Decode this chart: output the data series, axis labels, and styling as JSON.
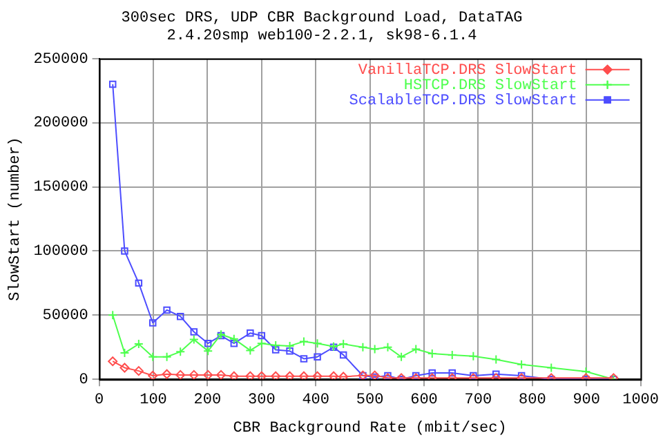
{
  "chart_data": {
    "type": "line",
    "title": "300sec DRS, UDP CBR Background Load, DataTAG",
    "subtitle": "2.4.20smp web100-2.2.1, sk98-6.1.4",
    "xlabel": "CBR Background Rate (mbit/sec)",
    "ylabel": "SlowStart (number)",
    "x": [
      25,
      47,
      73,
      99,
      125,
      150,
      175,
      201,
      225,
      249,
      279,
      300,
      326,
      352,
      378,
      403,
      433,
      451,
      487,
      509,
      533,
      558,
      585,
      615,
      652,
      691,
      733,
      780,
      835,
      899,
      950
    ],
    "series": [
      {
        "name": "VanillaTCP.DRS SlowStart",
        "color": "#ff4d4d",
        "marker": "diamond",
        "values": [
          14000,
          9000,
          6500,
          2800,
          4000,
          3400,
          3400,
          3400,
          3400,
          2400,
          2400,
          2400,
          2400,
          2400,
          2400,
          2400,
          2400,
          2000,
          3000,
          3000,
          1000,
          1000,
          1000,
          1000,
          1000,
          1000,
          1000,
          1000,
          1000,
          1000,
          1000
        ]
      },
      {
        "name": "HSTCP.DRS SlowStart",
        "color": "#4dff4d",
        "marker": "cross",
        "values": [
          50000,
          20500,
          27500,
          17500,
          17500,
          21500,
          31000,
          22000,
          35000,
          31500,
          22500,
          28000,
          26500,
          26000,
          29500,
          28000,
          25500,
          27500,
          25000,
          23500,
          25000,
          17500,
          23500,
          20000,
          19000,
          18000,
          15500,
          11500,
          9000,
          6000,
          0
        ]
      },
      {
        "name": "ScalableTCP.DRS SlowStart",
        "color": "#4d4dff",
        "marker": "square",
        "values": [
          230000,
          100000,
          75000,
          44000,
          54000,
          49000,
          37000,
          28000,
          34000,
          28000,
          36000,
          34000,
          23000,
          22000,
          16000,
          17500,
          25000,
          19000,
          2800,
          1700,
          2800,
          0,
          2800,
          5000,
          5000,
          2800,
          4000,
          2800,
          0,
          0,
          0
        ]
      }
    ],
    "xlim": [
      0,
      1000
    ],
    "xticks": [
      0,
      100,
      200,
      300,
      400,
      500,
      600,
      700,
      800,
      900,
      1000
    ],
    "ylim": [
      0,
      250000
    ],
    "yticks": [
      0,
      50000,
      100000,
      150000,
      200000,
      250000
    ],
    "grid": true,
    "legend": "top right",
    "line_style": "solid"
  }
}
